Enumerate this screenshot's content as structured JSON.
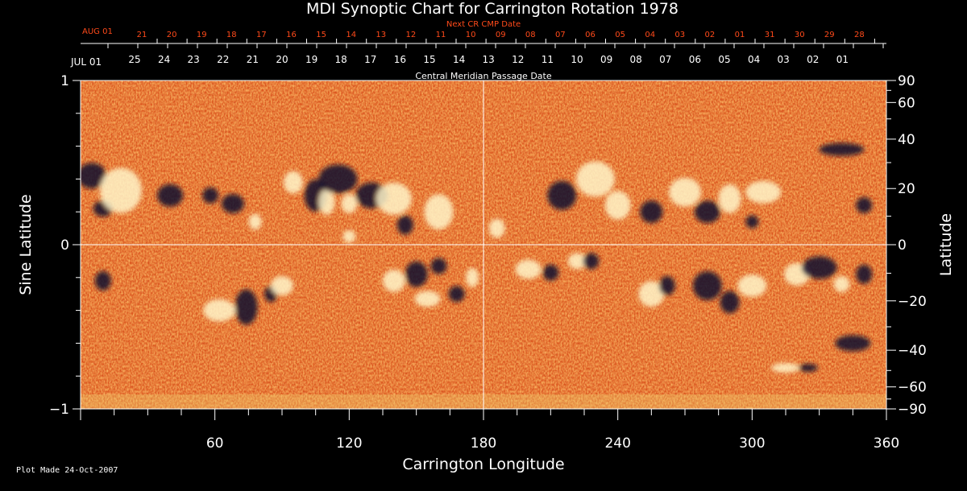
{
  "chart_data": {
    "type": "heatmap",
    "title": "MDI Synoptic Chart for Carrington Rotation 1978",
    "xlabel": "Carrington Longitude",
    "ylabel_left": "Sine Latitude",
    "ylabel_right": "Latitude",
    "xlim": [
      0,
      360
    ],
    "ylim": [
      -1,
      1
    ],
    "x_ticks": [
      60,
      120,
      180,
      240,
      300,
      360
    ],
    "y_ticks_left": [
      "1",
      "0",
      "−1"
    ],
    "y_ticks_right": [
      {
        "label": "90",
        "lat": 90
      },
      {
        "label": "60",
        "lat": 60
      },
      {
        "label": "40",
        "lat": 40
      },
      {
        "label": "20",
        "lat": 20
      },
      {
        "label": "0",
        "lat": 0
      },
      {
        "label": "−20",
        "lat": -20
      },
      {
        "label": "−40",
        "lat": -40
      },
      {
        "label": "−60",
        "lat": -60
      },
      {
        "label": "−90",
        "lat": -90
      }
    ],
    "cmp_date_label": "Central Meridian Passage Date",
    "cmp_start_label": "JUL 01",
    "cmp_dates": [
      "25",
      "24",
      "23",
      "22",
      "21",
      "20",
      "19",
      "18",
      "17",
      "16",
      "15",
      "14",
      "13",
      "12",
      "11",
      "10",
      "09",
      "08",
      "07",
      "06",
      "05",
      "04",
      "03",
      "02",
      "01"
    ],
    "next_cr_label": "Next CR CMP Date",
    "next_start_label": "AUG 01",
    "next_dates": [
      "21",
      "20",
      "19",
      "18",
      "17",
      "16",
      "15",
      "14",
      "13",
      "12",
      "11",
      "10",
      "09",
      "08",
      "07",
      "06",
      "05",
      "04",
      "03",
      "02",
      "01",
      "31",
      "30",
      "29",
      "28"
    ],
    "colors": {
      "background": "#000000",
      "field_base": "#d9501a",
      "positive_polarity": "#fff4c8",
      "negative_polarity": "#0a0a30",
      "next_cr_text": "#ff4a1a"
    }
  },
  "footer": {
    "plot_made": "Plot Made 24-Oct-2007"
  }
}
